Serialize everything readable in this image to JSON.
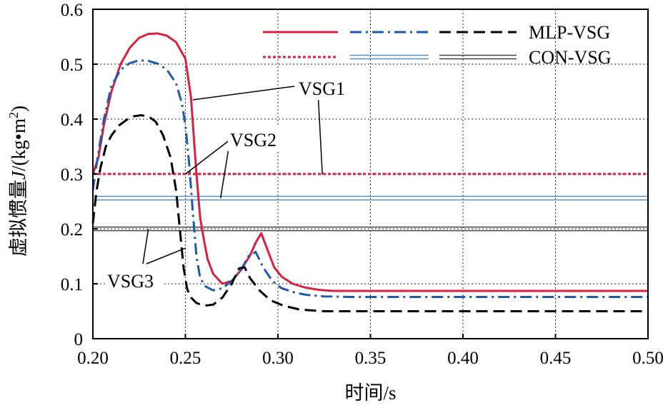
{
  "chart_data": {
    "type": "line",
    "title": "",
    "xlabel": "时间/s",
    "ylabel": "虚拟惯量 J/(kg•m²)",
    "ylabel_parts": {
      "cn": "虚拟惯量",
      "var": "J",
      "unit_pre": "/(kg•m",
      "sup": "2",
      "unit_post": ")"
    },
    "xlim": [
      0.2,
      0.5
    ],
    "ylim": [
      0,
      0.6
    ],
    "xticks": [
      "0.20",
      "0.25",
      "0.30",
      "0.35",
      "0.40",
      "0.45",
      "0.50"
    ],
    "xtick_values": [
      0.2,
      0.25,
      0.3,
      0.35,
      0.4,
      0.45,
      0.5
    ],
    "yticks": [
      "0",
      "0.1",
      "0.2",
      "0.3",
      "0.4",
      "0.5",
      "0.6"
    ],
    "ytick_values": [
      0,
      0.1,
      0.2,
      0.3,
      0.4,
      0.5,
      0.6
    ],
    "grid": true,
    "legend": {
      "placement": "top-right",
      "rows": [
        {
          "label": "MLP-VSG",
          "series": [
            "MLP-VSG1",
            "MLP-VSG2",
            "MLP-VSG3"
          ]
        },
        {
          "label": "CON-VSG",
          "series": [
            "CON-VSG1",
            "CON-VSG2",
            "CON-VSG3"
          ]
        }
      ]
    },
    "series": [
      {
        "name": "MLP-VSG1",
        "group": "MLP-VSG",
        "color": "#d9203f",
        "style": "solid",
        "x": [
          0.2,
          0.203,
          0.206,
          0.21,
          0.215,
          0.22,
          0.225,
          0.23,
          0.235,
          0.24,
          0.245,
          0.25,
          0.253,
          0.256,
          0.258,
          0.26,
          0.262,
          0.265,
          0.27,
          0.275,
          0.28,
          0.285,
          0.288,
          0.291,
          0.294,
          0.298,
          0.302,
          0.308,
          0.315,
          0.322,
          0.33,
          0.36,
          0.4,
          0.45,
          0.5
        ],
        "y": [
          0.3,
          0.33,
          0.39,
          0.45,
          0.5,
          0.53,
          0.548,
          0.555,
          0.556,
          0.552,
          0.54,
          0.51,
          0.44,
          0.3,
          0.22,
          0.18,
          0.145,
          0.118,
          0.1,
          0.105,
          0.125,
          0.152,
          0.175,
          0.192,
          0.165,
          0.13,
          0.113,
          0.1,
          0.093,
          0.089,
          0.087,
          0.087,
          0.087,
          0.087,
          0.087
        ]
      },
      {
        "name": "MLP-VSG2",
        "group": "MLP-VSG",
        "color": "#1e5aa8",
        "style": "dashdot",
        "x": [
          0.2,
          0.203,
          0.206,
          0.21,
          0.215,
          0.22,
          0.225,
          0.23,
          0.235,
          0.24,
          0.245,
          0.248,
          0.25,
          0.252,
          0.254,
          0.256,
          0.258,
          0.261,
          0.265,
          0.27,
          0.275,
          0.28,
          0.284,
          0.288,
          0.292,
          0.297,
          0.302,
          0.308,
          0.315,
          0.325,
          0.34,
          0.38,
          0.45,
          0.5
        ],
        "y": [
          0.27,
          0.34,
          0.4,
          0.46,
          0.49,
          0.502,
          0.507,
          0.506,
          0.501,
          0.49,
          0.465,
          0.43,
          0.39,
          0.32,
          0.23,
          0.15,
          0.11,
          0.095,
          0.088,
          0.092,
          0.105,
          0.125,
          0.15,
          0.158,
          0.13,
          0.105,
          0.092,
          0.085,
          0.08,
          0.077,
          0.076,
          0.076,
          0.076,
          0.076
        ]
      },
      {
        "name": "MLP-VSG3",
        "group": "MLP-VSG",
        "color": "#000000",
        "style": "dashed",
        "x": [
          0.2,
          0.202,
          0.204,
          0.207,
          0.21,
          0.214,
          0.218,
          0.222,
          0.226,
          0.23,
          0.234,
          0.238,
          0.242,
          0.245,
          0.247,
          0.249,
          0.251,
          0.253,
          0.256,
          0.26,
          0.265,
          0.27,
          0.275,
          0.279,
          0.282,
          0.285,
          0.29,
          0.296,
          0.303,
          0.312,
          0.325,
          0.35,
          0.4,
          0.5
        ],
        "y": [
          0.21,
          0.27,
          0.31,
          0.35,
          0.37,
          0.388,
          0.398,
          0.405,
          0.407,
          0.405,
          0.395,
          0.37,
          0.33,
          0.27,
          0.2,
          0.13,
          0.09,
          0.075,
          0.065,
          0.06,
          0.062,
          0.075,
          0.1,
          0.128,
          0.13,
          0.11,
          0.088,
          0.07,
          0.06,
          0.053,
          0.05,
          0.05,
          0.05,
          0.05
        ]
      },
      {
        "name": "CON-VSG1",
        "group": "CON-VSG",
        "color": "#d9203f",
        "style": "dotted",
        "x": [
          0.2,
          0.5
        ],
        "y": [
          0.3,
          0.3
        ]
      },
      {
        "name": "CON-VSG2",
        "group": "CON-VSG",
        "color": "#5b8fd0",
        "style": "double",
        "x": [
          0.2,
          0.5
        ],
        "y": [
          0.256,
          0.256
        ]
      },
      {
        "name": "CON-VSG3",
        "group": "CON-VSG",
        "color": "#444444",
        "style": "double",
        "x": [
          0.2,
          0.5
        ],
        "y": [
          0.2,
          0.2
        ]
      }
    ],
    "annotations": [
      {
        "text": "VSG1",
        "targets": [
          [
            0.254,
            0.435
          ],
          [
            0.324,
            0.3
          ]
        ]
      },
      {
        "text": "VSG2",
        "targets": [
          [
            0.25,
            0.3
          ],
          [
            0.269,
            0.256
          ]
        ]
      },
      {
        "text": "VSG3",
        "targets": [
          [
            0.23,
            0.2
          ],
          [
            0.25,
            0.165
          ]
        ]
      }
    ]
  }
}
